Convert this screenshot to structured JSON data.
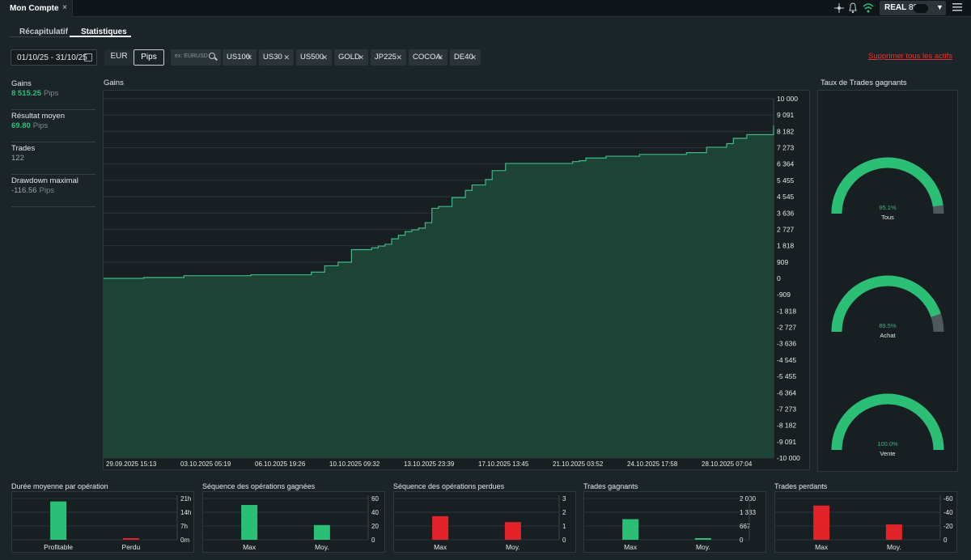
{
  "window": {
    "tab_label": "Mon Compte",
    "tab_close": "×"
  },
  "header": {
    "mode": "REAL",
    "account_partial": "88",
    "menu_icon": "hamburger-icon"
  },
  "subtabs": [
    {
      "label": "Récapitulatif",
      "active": false
    },
    {
      "label": "Statistiques",
      "active": true
    }
  ],
  "filters": {
    "date_range": "01/10/25 - 31/10/25",
    "currency_options": [
      {
        "label": "EUR",
        "selected": false
      },
      {
        "label": "Pips",
        "selected": true
      }
    ],
    "search_placeholder": "ex: EURUSD",
    "chips": [
      "US100",
      "US30",
      "US500",
      "GOLD",
      "JP225",
      "COCOA",
      "DE40"
    ],
    "remove_all": "Supprimer tous les actifs"
  },
  "stats": [
    {
      "label": "Gains",
      "value": "8 515.25",
      "unit": "Pips",
      "color": "green"
    },
    {
      "label": "Résultat moyen",
      "value": "69.80",
      "unit": "Pips",
      "color": "green"
    },
    {
      "label": "Trades",
      "value": "122",
      "unit": "",
      "color": "gray"
    },
    {
      "label": "Drawdown maximal",
      "value": "-116.56",
      "unit": "Pips",
      "color": "gray"
    }
  ],
  "gains_title": "Gains",
  "winrate_title": "Taux de Trades gagnants",
  "colors": {
    "green": "#2bbf76",
    "red": "#e3232a",
    "gauge_rest": "#4c5a60",
    "area_fill": "#1d4a3a",
    "line": "#3fb98a"
  },
  "chart_data": [
    {
      "type": "area",
      "title": "Gains",
      "y_ticks": [
        "10 000",
        "9 091",
        "8 182",
        "7 273",
        "6 364",
        "5 455",
        "4 545",
        "3 636",
        "2 727",
        "1 818",
        "909",
        "0",
        "-909",
        "-1 818",
        "-2 727",
        "-3 636",
        "-4 545",
        "-5 455",
        "-6 364",
        "-7 273",
        "-8 182",
        "-9 091",
        "-10 000"
      ],
      "ylim": [
        -10000,
        10000
      ],
      "x_ticks": [
        "29.09.2025 15:13",
        "03.10.2025 05:19",
        "06.10.2025 19:26",
        "10.10.2025 09:32",
        "13.10.2025 23:39",
        "17.10.2025 13:45",
        "21.10.2025 03:52",
        "24.10.2025 17:58",
        "28.10.2025 07:04"
      ],
      "grid": true,
      "x": [
        0,
        0.06,
        0.12,
        0.22,
        0.31,
        0.33,
        0.35,
        0.37,
        0.4,
        0.41,
        0.42,
        0.43,
        0.44,
        0.45,
        0.46,
        0.47,
        0.48,
        0.49,
        0.5,
        0.52,
        0.54,
        0.55,
        0.57,
        0.58,
        0.6,
        0.7,
        0.71,
        0.72,
        0.75,
        0.8,
        0.87,
        0.9,
        0.93,
        0.94,
        0.96,
        1.0
      ],
      "y": [
        0,
        50,
        150,
        200,
        350,
        700,
        900,
        1600,
        1700,
        1800,
        1900,
        2200,
        2400,
        2600,
        2700,
        2800,
        3100,
        3900,
        4000,
        4500,
        4900,
        5200,
        5500,
        6000,
        6400,
        6500,
        6550,
        6700,
        6800,
        6900,
        7000,
        7300,
        7500,
        7800,
        8000,
        8515
      ]
    },
    {
      "type": "gauge",
      "title": "Taux de Trades gagnants",
      "series": [
        {
          "name": "Tous",
          "value": 95.1,
          "label": "95.1%"
        },
        {
          "name": "Achat",
          "value": 89.5,
          "label": "89.5%"
        },
        {
          "name": "Vente",
          "value": 100.0,
          "label": "100.0%"
        }
      ]
    },
    {
      "type": "bar",
      "title": "Durée moyenne par opération",
      "categories": [
        "Profitable",
        "Perdu"
      ],
      "values": [
        26,
        1
      ],
      "colors": [
        "green",
        "red"
      ],
      "y_ticks": [
        "21h",
        "14h",
        "7h",
        "0m"
      ],
      "ylim": [
        0,
        28
      ]
    },
    {
      "type": "bar",
      "title": "Séquence des opérations gagnées",
      "categories": [
        "Max",
        "Moy."
      ],
      "values": [
        59,
        25
      ],
      "colors": [
        "green",
        "green"
      ],
      "y_ticks": [
        "60",
        "40",
        "20",
        "0"
      ],
      "ylim": [
        0,
        70
      ]
    },
    {
      "type": "bar",
      "title": "Séquence des opérations perdues",
      "categories": [
        "Max",
        "Moy."
      ],
      "values": [
        2,
        1.5
      ],
      "colors": [
        "red",
        "red"
      ],
      "y_ticks": [
        "3",
        "2",
        "1",
        "0"
      ],
      "ylim": [
        0,
        3.5
      ]
    },
    {
      "type": "bar",
      "title": "Trades gagnants",
      "categories": [
        "Max",
        "Moy."
      ],
      "values": [
        1150,
        50
      ],
      "colors": [
        "green",
        "green"
      ],
      "y_ticks": [
        "2 000",
        "1 333",
        "667",
        "0"
      ],
      "ylim": [
        0,
        2300
      ]
    },
    {
      "type": "bar",
      "title": "Trades perdants",
      "categories": [
        "Max",
        "Moy."
      ],
      "values": [
        -58,
        -26
      ],
      "colors": [
        "red",
        "red"
      ],
      "y_ticks": [
        "-60",
        "-40",
        "-20",
        "0"
      ],
      "ylim": [
        0,
        -70
      ]
    }
  ]
}
